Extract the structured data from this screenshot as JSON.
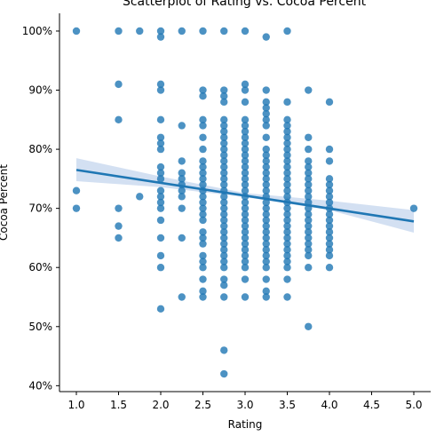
{
  "chart_data": {
    "type": "scatter",
    "title": "Scatterplot of Rating vs. Cocoa Percent",
    "xlabel": "Rating",
    "ylabel": "Cocoa Percent",
    "xlim": [
      0.8,
      5.2
    ],
    "ylim": [
      39,
      103
    ],
    "x_ticks": [
      1.0,
      1.5,
      2.0,
      2.5,
      3.0,
      3.5,
      4.0,
      4.5,
      5.0
    ],
    "x_tick_labels": [
      "1.0",
      "1.5",
      "2.0",
      "2.5",
      "3.0",
      "3.5",
      "4.0",
      "4.5",
      "5.0"
    ],
    "y_ticks": [
      40,
      50,
      60,
      70,
      80,
      90,
      100
    ],
    "y_tick_labels": [
      "40%",
      "50%",
      "60%",
      "70%",
      "80%",
      "90%",
      "100%"
    ],
    "grid": false,
    "colors": {
      "points": "#1f77b4",
      "line": "#1f77b4",
      "ci_band": "#aec7e8"
    },
    "regression": {
      "x": [
        1.0,
        5.0
      ],
      "y": [
        76.5,
        67.8
      ]
    },
    "ci_band": {
      "x": [
        1.0,
        2.0,
        3.0,
        4.0,
        5.0
      ],
      "lower": [
        74.6,
        73.6,
        71.9,
        69.7,
        65.9
      ],
      "upper": [
        78.5,
        75.4,
        72.6,
        71.3,
        69.7
      ]
    },
    "points": [
      {
        "x": 1.0,
        "y": 100
      },
      {
        "x": 1.0,
        "y": 73
      },
      {
        "x": 1.0,
        "y": 70
      },
      {
        "x": 1.5,
        "y": 100
      },
      {
        "x": 1.5,
        "y": 91
      },
      {
        "x": 1.5,
        "y": 85
      },
      {
        "x": 1.5,
        "y": 70
      },
      {
        "x": 1.5,
        "y": 67
      },
      {
        "x": 1.5,
        "y": 65
      },
      {
        "x": 1.75,
        "y": 100
      },
      {
        "x": 1.75,
        "y": 72
      },
      {
        "x": 2.0,
        "y": 100
      },
      {
        "x": 2.0,
        "y": 99
      },
      {
        "x": 2.0,
        "y": 91
      },
      {
        "x": 2.0,
        "y": 90
      },
      {
        "x": 2.0,
        "y": 85
      },
      {
        "x": 2.0,
        "y": 82
      },
      {
        "x": 2.0,
        "y": 81
      },
      {
        "x": 2.0,
        "y": 80
      },
      {
        "x": 2.0,
        "y": 77
      },
      {
        "x": 2.0,
        "y": 76
      },
      {
        "x": 2.0,
        "y": 75
      },
      {
        "x": 2.0,
        "y": 73
      },
      {
        "x": 2.0,
        "y": 72
      },
      {
        "x": 2.0,
        "y": 71
      },
      {
        "x": 2.0,
        "y": 70
      },
      {
        "x": 2.0,
        "y": 68
      },
      {
        "x": 2.0,
        "y": 65
      },
      {
        "x": 2.0,
        "y": 62
      },
      {
        "x": 2.0,
        "y": 60
      },
      {
        "x": 2.0,
        "y": 53
      },
      {
        "x": 2.25,
        "y": 100
      },
      {
        "x": 2.25,
        "y": 84
      },
      {
        "x": 2.25,
        "y": 78
      },
      {
        "x": 2.25,
        "y": 76
      },
      {
        "x": 2.25,
        "y": 75
      },
      {
        "x": 2.25,
        "y": 74
      },
      {
        "x": 2.25,
        "y": 73
      },
      {
        "x": 2.25,
        "y": 72
      },
      {
        "x": 2.25,
        "y": 70
      },
      {
        "x": 2.25,
        "y": 65
      },
      {
        "x": 2.25,
        "y": 55
      },
      {
        "x": 2.5,
        "y": 100
      },
      {
        "x": 2.5,
        "y": 90
      },
      {
        "x": 2.5,
        "y": 89
      },
      {
        "x": 2.5,
        "y": 85
      },
      {
        "x": 2.5,
        "y": 84
      },
      {
        "x": 2.5,
        "y": 82
      },
      {
        "x": 2.5,
        "y": 80
      },
      {
        "x": 2.5,
        "y": 78
      },
      {
        "x": 2.5,
        "y": 77
      },
      {
        "x": 2.5,
        "y": 76
      },
      {
        "x": 2.5,
        "y": 75
      },
      {
        "x": 2.5,
        "y": 74
      },
      {
        "x": 2.5,
        "y": 73
      },
      {
        "x": 2.5,
        "y": 72
      },
      {
        "x": 2.5,
        "y": 71
      },
      {
        "x": 2.5,
        "y": 70
      },
      {
        "x": 2.5,
        "y": 69
      },
      {
        "x": 2.5,
        "y": 68
      },
      {
        "x": 2.5,
        "y": 66
      },
      {
        "x": 2.5,
        "y": 65
      },
      {
        "x": 2.5,
        "y": 64
      },
      {
        "x": 2.5,
        "y": 62
      },
      {
        "x": 2.5,
        "y": 61
      },
      {
        "x": 2.5,
        "y": 60
      },
      {
        "x": 2.5,
        "y": 58
      },
      {
        "x": 2.5,
        "y": 56
      },
      {
        "x": 2.5,
        "y": 55
      },
      {
        "x": 2.75,
        "y": 100
      },
      {
        "x": 2.75,
        "y": 90
      },
      {
        "x": 2.75,
        "y": 89
      },
      {
        "x": 2.75,
        "y": 88
      },
      {
        "x": 2.75,
        "y": 85
      },
      {
        "x": 2.75,
        "y": 84
      },
      {
        "x": 2.75,
        "y": 83
      },
      {
        "x": 2.75,
        "y": 82
      },
      {
        "x": 2.75,
        "y": 81
      },
      {
        "x": 2.75,
        "y": 80
      },
      {
        "x": 2.75,
        "y": 79
      },
      {
        "x": 2.75,
        "y": 78
      },
      {
        "x": 2.75,
        "y": 77
      },
      {
        "x": 2.75,
        "y": 76
      },
      {
        "x": 2.75,
        "y": 75
      },
      {
        "x": 2.75,
        "y": 74
      },
      {
        "x": 2.75,
        "y": 73
      },
      {
        "x": 2.75,
        "y": 72
      },
      {
        "x": 2.75,
        "y": 71
      },
      {
        "x": 2.75,
        "y": 70
      },
      {
        "x": 2.75,
        "y": 69
      },
      {
        "x": 2.75,
        "y": 68
      },
      {
        "x": 2.75,
        "y": 67
      },
      {
        "x": 2.75,
        "y": 66
      },
      {
        "x": 2.75,
        "y": 65
      },
      {
        "x": 2.75,
        "y": 64
      },
      {
        "x": 2.75,
        "y": 63
      },
      {
        "x": 2.75,
        "y": 62
      },
      {
        "x": 2.75,
        "y": 61
      },
      {
        "x": 2.75,
        "y": 60
      },
      {
        "x": 2.75,
        "y": 58
      },
      {
        "x": 2.75,
        "y": 57
      },
      {
        "x": 2.75,
        "y": 55
      },
      {
        "x": 2.75,
        "y": 46
      },
      {
        "x": 2.75,
        "y": 42
      },
      {
        "x": 3.0,
        "y": 100
      },
      {
        "x": 3.0,
        "y": 91
      },
      {
        "x": 3.0,
        "y": 90
      },
      {
        "x": 3.0,
        "y": 88
      },
      {
        "x": 3.0,
        "y": 85
      },
      {
        "x": 3.0,
        "y": 84
      },
      {
        "x": 3.0,
        "y": 83
      },
      {
        "x": 3.0,
        "y": 82
      },
      {
        "x": 3.0,
        "y": 81
      },
      {
        "x": 3.0,
        "y": 80
      },
      {
        "x": 3.0,
        "y": 79
      },
      {
        "x": 3.0,
        "y": 78
      },
      {
        "x": 3.0,
        "y": 77
      },
      {
        "x": 3.0,
        "y": 76
      },
      {
        "x": 3.0,
        "y": 75
      },
      {
        "x": 3.0,
        "y": 74
      },
      {
        "x": 3.0,
        "y": 73
      },
      {
        "x": 3.0,
        "y": 72
      },
      {
        "x": 3.0,
        "y": 71
      },
      {
        "x": 3.0,
        "y": 70
      },
      {
        "x": 3.0,
        "y": 69
      },
      {
        "x": 3.0,
        "y": 68
      },
      {
        "x": 3.0,
        "y": 67
      },
      {
        "x": 3.0,
        "y": 66
      },
      {
        "x": 3.0,
        "y": 65
      },
      {
        "x": 3.0,
        "y": 64
      },
      {
        "x": 3.0,
        "y": 63
      },
      {
        "x": 3.0,
        "y": 62
      },
      {
        "x": 3.0,
        "y": 61
      },
      {
        "x": 3.0,
        "y": 60
      },
      {
        "x": 3.0,
        "y": 58
      },
      {
        "x": 3.0,
        "y": 55
      },
      {
        "x": 3.25,
        "y": 99
      },
      {
        "x": 3.25,
        "y": 90
      },
      {
        "x": 3.25,
        "y": 88
      },
      {
        "x": 3.25,
        "y": 87
      },
      {
        "x": 3.25,
        "y": 86
      },
      {
        "x": 3.25,
        "y": 85
      },
      {
        "x": 3.25,
        "y": 84
      },
      {
        "x": 3.25,
        "y": 82
      },
      {
        "x": 3.25,
        "y": 80
      },
      {
        "x": 3.25,
        "y": 79
      },
      {
        "x": 3.25,
        "y": 78
      },
      {
        "x": 3.25,
        "y": 77
      },
      {
        "x": 3.25,
        "y": 76
      },
      {
        "x": 3.25,
        "y": 75
      },
      {
        "x": 3.25,
        "y": 74
      },
      {
        "x": 3.25,
        "y": 73
      },
      {
        "x": 3.25,
        "y": 72
      },
      {
        "x": 3.25,
        "y": 71
      },
      {
        "x": 3.25,
        "y": 70
      },
      {
        "x": 3.25,
        "y": 69
      },
      {
        "x": 3.25,
        "y": 68
      },
      {
        "x": 3.25,
        "y": 67
      },
      {
        "x": 3.25,
        "y": 66
      },
      {
        "x": 3.25,
        "y": 65
      },
      {
        "x": 3.25,
        "y": 64
      },
      {
        "x": 3.25,
        "y": 63
      },
      {
        "x": 3.25,
        "y": 62
      },
      {
        "x": 3.25,
        "y": 61
      },
      {
        "x": 3.25,
        "y": 60
      },
      {
        "x": 3.25,
        "y": 58
      },
      {
        "x": 3.25,
        "y": 56
      },
      {
        "x": 3.25,
        "y": 55
      },
      {
        "x": 3.5,
        "y": 100
      },
      {
        "x": 3.5,
        "y": 88
      },
      {
        "x": 3.5,
        "y": 85
      },
      {
        "x": 3.5,
        "y": 84
      },
      {
        "x": 3.5,
        "y": 83
      },
      {
        "x": 3.5,
        "y": 82
      },
      {
        "x": 3.5,
        "y": 81
      },
      {
        "x": 3.5,
        "y": 80
      },
      {
        "x": 3.5,
        "y": 79
      },
      {
        "x": 3.5,
        "y": 78
      },
      {
        "x": 3.5,
        "y": 77
      },
      {
        "x": 3.5,
        "y": 76
      },
      {
        "x": 3.5,
        "y": 75
      },
      {
        "x": 3.5,
        "y": 74
      },
      {
        "x": 3.5,
        "y": 73
      },
      {
        "x": 3.5,
        "y": 72
      },
      {
        "x": 3.5,
        "y": 71
      },
      {
        "x": 3.5,
        "y": 70
      },
      {
        "x": 3.5,
        "y": 69
      },
      {
        "x": 3.5,
        "y": 68
      },
      {
        "x": 3.5,
        "y": 67
      },
      {
        "x": 3.5,
        "y": 66
      },
      {
        "x": 3.5,
        "y": 65
      },
      {
        "x": 3.5,
        "y": 64
      },
      {
        "x": 3.5,
        "y": 63
      },
      {
        "x": 3.5,
        "y": 62
      },
      {
        "x": 3.5,
        "y": 61
      },
      {
        "x": 3.5,
        "y": 60
      },
      {
        "x": 3.5,
        "y": 58
      },
      {
        "x": 3.5,
        "y": 55
      },
      {
        "x": 3.75,
        "y": 90
      },
      {
        "x": 3.75,
        "y": 82
      },
      {
        "x": 3.75,
        "y": 80
      },
      {
        "x": 3.75,
        "y": 78
      },
      {
        "x": 3.75,
        "y": 77
      },
      {
        "x": 3.75,
        "y": 76
      },
      {
        "x": 3.75,
        "y": 75
      },
      {
        "x": 3.75,
        "y": 74
      },
      {
        "x": 3.75,
        "y": 73
      },
      {
        "x": 3.75,
        "y": 72
      },
      {
        "x": 3.75,
        "y": 71
      },
      {
        "x": 3.75,
        "y": 70
      },
      {
        "x": 3.75,
        "y": 69
      },
      {
        "x": 3.75,
        "y": 68
      },
      {
        "x": 3.75,
        "y": 67
      },
      {
        "x": 3.75,
        "y": 66
      },
      {
        "x": 3.75,
        "y": 65
      },
      {
        "x": 3.75,
        "y": 64
      },
      {
        "x": 3.75,
        "y": 63
      },
      {
        "x": 3.75,
        "y": 62
      },
      {
        "x": 3.75,
        "y": 60
      },
      {
        "x": 3.75,
        "y": 50
      },
      {
        "x": 4.0,
        "y": 88
      },
      {
        "x": 4.0,
        "y": 80
      },
      {
        "x": 4.0,
        "y": 78
      },
      {
        "x": 4.0,
        "y": 75
      },
      {
        "x": 4.0,
        "y": 74
      },
      {
        "x": 4.0,
        "y": 73
      },
      {
        "x": 4.0,
        "y": 72
      },
      {
        "x": 4.0,
        "y": 71
      },
      {
        "x": 4.0,
        "y": 70
      },
      {
        "x": 4.0,
        "y": 69
      },
      {
        "x": 4.0,
        "y": 68
      },
      {
        "x": 4.0,
        "y": 67
      },
      {
        "x": 4.0,
        "y": 66
      },
      {
        "x": 4.0,
        "y": 65
      },
      {
        "x": 4.0,
        "y": 64
      },
      {
        "x": 4.0,
        "y": 63
      },
      {
        "x": 4.0,
        "y": 62
      },
      {
        "x": 4.0,
        "y": 60
      },
      {
        "x": 5.0,
        "y": 70
      }
    ]
  }
}
